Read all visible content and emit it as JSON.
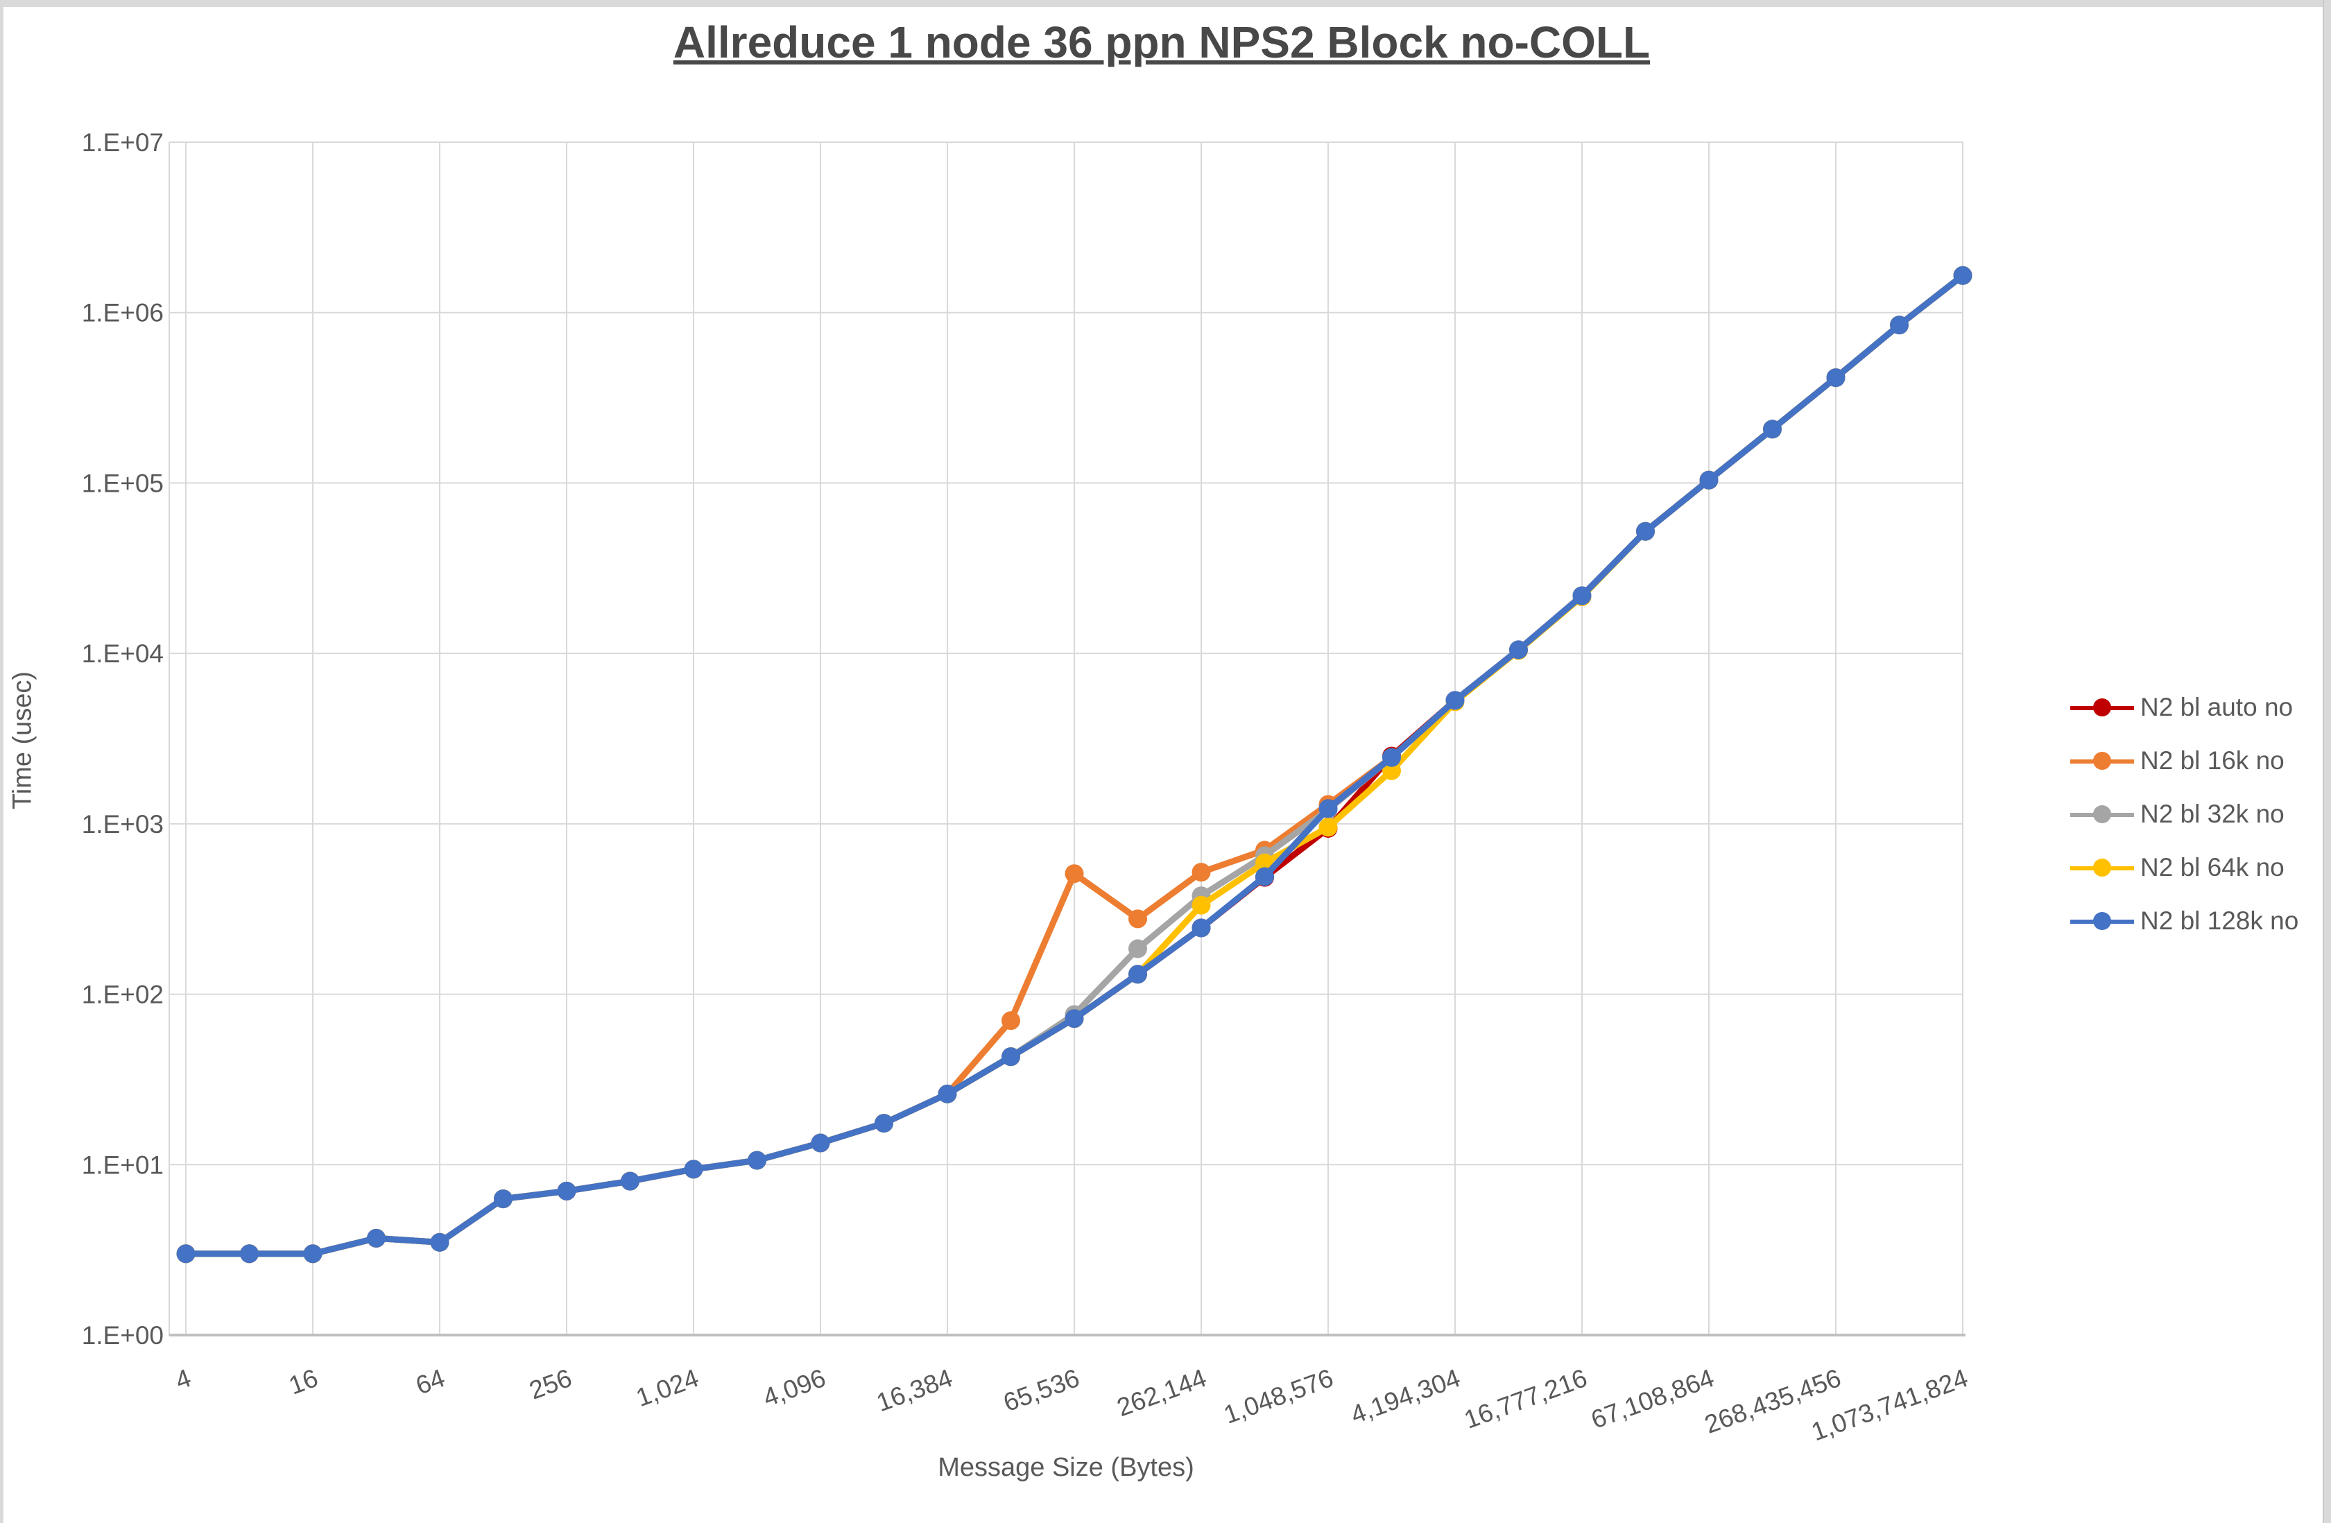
{
  "window": {
    "edge_color": "#d9d9d9"
  },
  "chart": {
    "title": "Allreduce 1 node 36 ppn NPS2 Block no-COLL",
    "y_axis_title": "Time (usec)",
    "x_axis_title": "Message Size (Bytes)",
    "y_tick_labels": [
      "1.E+00",
      "1.E+01",
      "1.E+02",
      "1.E+03",
      "1.E+04",
      "1.E+05",
      "1.E+06",
      "1.E+07"
    ],
    "x_tick_labels": [
      "4",
      "16",
      "64",
      "256",
      "1,024",
      "4,096",
      "16,384",
      "65,536",
      "262,144",
      "1,048,576",
      "4,194,304",
      "16,777,216",
      "67,108,864",
      "268,435,456",
      "1,073,741,824"
    ],
    "text_color": "#595959",
    "gridline_color": "#d9d9d9",
    "axis_line_color": "#bfbfbf"
  },
  "chart_data": {
    "type": "line",
    "title": "Allreduce 1 node 36 ppn NPS2 Block no-COLL",
    "xlabel": "Message Size (Bytes)",
    "ylabel": "Time (usec)",
    "x_scale": "log2_categories",
    "y_scale": "log10",
    "ylim": [
      1,
      10000000
    ],
    "grid": true,
    "legend_position": "right",
    "categories": [
      4,
      8,
      16,
      32,
      64,
      128,
      256,
      512,
      1024,
      2048,
      4096,
      8192,
      16384,
      32768,
      65536,
      131072,
      262144,
      524288,
      1048576,
      2097152,
      4194304,
      8388608,
      16777216,
      33554432,
      67108864,
      134217728,
      268435456,
      536870912,
      1073741824
    ],
    "series": [
      {
        "name": "N2 bl auto no",
        "color": "#C00000",
        "values": [
          3.0,
          3.0,
          3.0,
          3.7,
          3.5,
          6.3,
          7.0,
          8.0,
          9.4,
          10.6,
          13.4,
          17.5,
          26,
          43,
          72,
          131,
          245,
          485,
          940,
          2500,
          5300,
          10500,
          21800,
          52000,
          104000,
          207000,
          415000,
          845000,
          1650000
        ]
      },
      {
        "name": "N2 bl 16k no",
        "color": "#ED7D31",
        "values": [
          3.0,
          3.0,
          3.0,
          3.7,
          3.5,
          6.3,
          7.0,
          8.0,
          9.4,
          10.6,
          13.4,
          17.5,
          26,
          70,
          510,
          277,
          520,
          700,
          1300,
          2450,
          5300,
          10500,
          21800,
          52000,
          104000,
          207000,
          415000,
          845000,
          1650000
        ]
      },
      {
        "name": "N2 bl 32k no",
        "color": "#A5A5A5",
        "values": [
          3.0,
          3.0,
          3.0,
          3.7,
          3.5,
          6.3,
          7.0,
          8.0,
          9.4,
          10.6,
          13.4,
          17.5,
          26,
          43,
          76,
          185,
          378,
          650,
          1210,
          2450,
          5300,
          10500,
          21800,
          52000,
          104000,
          207000,
          415000,
          845000,
          1650000
        ]
      },
      {
        "name": "N2 bl 64k no",
        "color": "#FFC000",
        "values": [
          3.0,
          3.0,
          3.0,
          3.7,
          3.5,
          6.3,
          7.0,
          8.0,
          9.4,
          10.6,
          13.4,
          17.5,
          26,
          43,
          72,
          131,
          333,
          590,
          955,
          2050,
          5200,
          10400,
          21500,
          52000,
          104000,
          207000,
          415000,
          845000,
          1650000
        ]
      },
      {
        "name": "N2 bl 128k no",
        "color": "#4472C4",
        "values": [
          3.0,
          3.0,
          3.0,
          3.7,
          3.5,
          6.3,
          7.0,
          8.0,
          9.4,
          10.6,
          13.4,
          17.5,
          26,
          43,
          72,
          131,
          245,
          490,
          1230,
          2450,
          5300,
          10500,
          21800,
          52000,
          104000,
          207000,
          415000,
          845000,
          1650000
        ]
      }
    ]
  }
}
